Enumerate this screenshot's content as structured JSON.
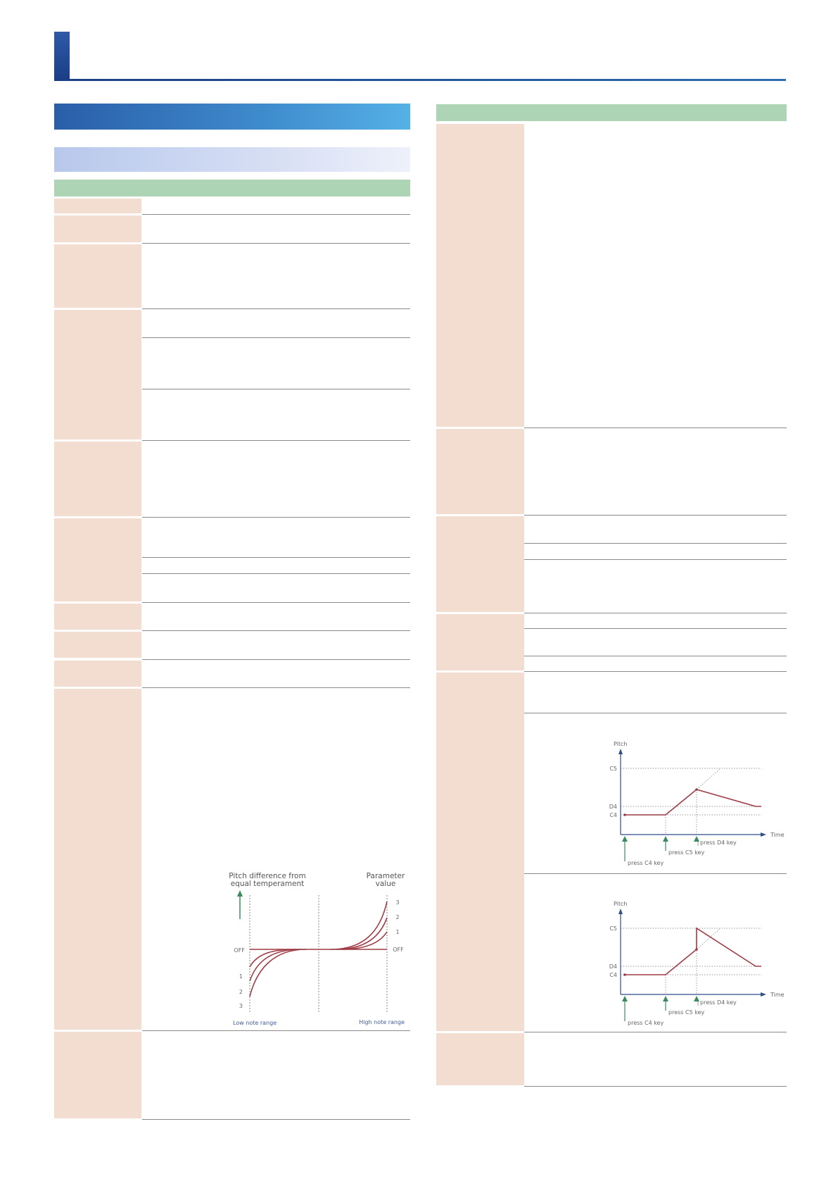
{
  "curve_chart": {
    "y_label_line1": "Pitch difference from",
    "y_label_line2": "equal temperament",
    "param_label_line1": "Parameter",
    "param_label_line2": "value",
    "right_ticks": [
      "3",
      "2",
      "1",
      "OFF"
    ],
    "left_ticks": [
      "OFF",
      "1",
      "2",
      "3"
    ],
    "low_label": "Low note range",
    "high_label": "High note range",
    "colors": {
      "curve": "#9e3a44",
      "arrow": "#3a8a5e"
    }
  },
  "portamento_chart_1": {
    "y_axis": "Pitch",
    "x_axis": "Time",
    "y_ticks": [
      "C5",
      "D4",
      "C4"
    ],
    "events": [
      "press C4 key",
      "press C5 key",
      "press D4 key"
    ]
  },
  "portamento_chart_2": {
    "y_axis": "Pitch",
    "x_axis": "Time",
    "y_ticks": [
      "C5",
      "D4",
      "C4"
    ],
    "events": [
      "press C4 key",
      "press C5 key",
      "press D4 key"
    ]
  }
}
